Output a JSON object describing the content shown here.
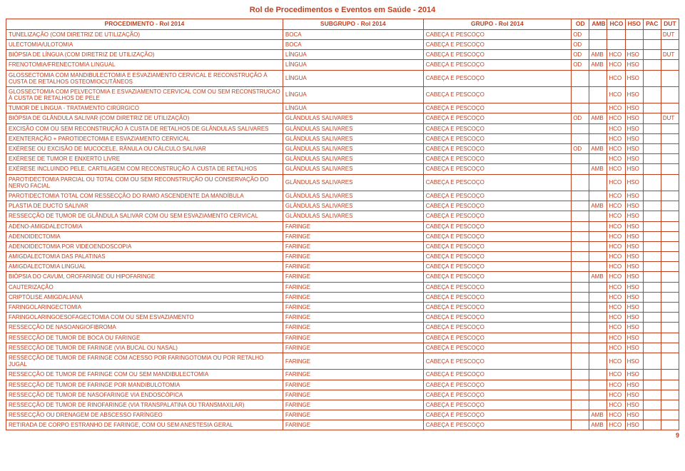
{
  "doc_title": "Rol de Procedimentos e Eventos em Saúde - 2014",
  "page_number": "9",
  "headers": {
    "proc": "PROCEDIMENTO - Rol 2014",
    "sub": "SUBGRUPO - Rol 2014",
    "grp": "GRUPO - Rol 2014",
    "od": "OD",
    "amb": "AMB",
    "hco": "HCO",
    "hso": "HSO",
    "pac": "PAC",
    "dut": "DUT"
  },
  "rows": [
    {
      "proc": "TUNELIZAÇÃO (COM DIRETRIZ DE UTILIZAÇÃO)",
      "sub": "BOCA",
      "grp": "CABEÇA E PESCOÇO",
      "od": "OD",
      "amb": "",
      "hco": "",
      "hso": "",
      "pac": "",
      "dut": "DUT"
    },
    {
      "proc": "ULECTOMIA/ULOTOMIA",
      "sub": "BOCA",
      "grp": "CABEÇA E PESCOÇO",
      "od": "OD",
      "amb": "",
      "hco": "",
      "hso": "",
      "pac": "",
      "dut": ""
    },
    {
      "proc": "BIÓPSIA DE LÍNGUA (COM DIRETRIZ DE UTILIZAÇÃO)",
      "sub": "LÍNGUA",
      "grp": "CABEÇA E PESCOÇO",
      "od": "OD",
      "amb": "AMB",
      "hco": "HCO",
      "hso": "HSO",
      "pac": "",
      "dut": "DUT"
    },
    {
      "proc": "FRENOTOMIA/FRENECTOMIA LINGUAL",
      "sub": "LÍNGUA",
      "grp": "CABEÇA E PESCOÇO",
      "od": "OD",
      "amb": "AMB",
      "hco": "HCO",
      "hso": "HSO",
      "pac": "",
      "dut": ""
    },
    {
      "proc": "GLOSSECTOMIA COM MANDIBULECTOMIA E ESVAZIAMENTO CERVICAL E RECONSTRUÇÃO À CUSTA DE RETALHOS OSTEOMIOCUTÂNEOS",
      "sub": "LÍNGUA",
      "grp": "CABEÇA E PESCOÇO",
      "od": "",
      "amb": "",
      "hco": "HCO",
      "hso": "HSO",
      "pac": "",
      "dut": ""
    },
    {
      "proc": "GLOSSECTOMIA COM PELVECTOMIA E ESVAZIAMENTO CERVICAL COM OU SEM RECONSTRUCAO À CUSTA DE RETALHOS DE PELE",
      "sub": "LÍNGUA",
      "grp": "CABEÇA E PESCOÇO",
      "od": "",
      "amb": "",
      "hco": "HCO",
      "hso": "HSO",
      "pac": "",
      "dut": ""
    },
    {
      "proc": "TUMOR DE LÍNGUA - TRATAMENTO CIRÚRGICO",
      "sub": "LÍNGUA",
      "grp": "CABEÇA E PESCOÇO",
      "od": "",
      "amb": "",
      "hco": "HCO",
      "hso": "HSO",
      "pac": "",
      "dut": ""
    },
    {
      "proc": "BIÓPSIA DE GLÂNDULA SALIVAR (COM DIRETRIZ DE UTILIZAÇÃO)",
      "sub": "GLÂNDULAS SALIVARES",
      "grp": "CABEÇA E PESCOÇO",
      "od": "OD",
      "amb": "AMB",
      "hco": "HCO",
      "hso": "HSO",
      "pac": "",
      "dut": "DUT"
    },
    {
      "proc": "EXCISÃO COM OU SEM RECONSTRUÇÃO À CUSTA DE RETALHOS DE GLÂNDULAS SALIVARES",
      "sub": "GLÂNDULAS SALIVARES",
      "grp": "CABEÇA E PESCOÇO",
      "od": "",
      "amb": "",
      "hco": "HCO",
      "hso": "HSO",
      "pac": "",
      "dut": ""
    },
    {
      "proc": "EXENTERAÇÃO + PAROTIDECTOMIA E ESVAZIAMENTO CERVICAL",
      "sub": "GLÂNDULAS SALIVARES",
      "grp": "CABEÇA E PESCOÇO",
      "od": "",
      "amb": "",
      "hco": "HCO",
      "hso": "HSO",
      "pac": "",
      "dut": ""
    },
    {
      "proc": "EXÉRESE OU EXCISÃO DE MUCOCELE, RÂNULA OU CÁLCULO SALIVAR",
      "sub": "GLÂNDULAS SALIVARES",
      "grp": "CABEÇA E PESCOÇO",
      "od": "OD",
      "amb": "AMB",
      "hco": "HCO",
      "hso": "HSO",
      "pac": "",
      "dut": ""
    },
    {
      "proc": "EXÉRESE DE TUMOR E ENXERTO LIVRE",
      "sub": "GLÂNDULAS SALIVARES",
      "grp": "CABEÇA E PESCOÇO",
      "od": "",
      "amb": "",
      "hco": "HCO",
      "hso": "HSO",
      "pac": "",
      "dut": ""
    },
    {
      "proc": "EXÉRESE INCLUINDO PELE, CARTILAGEM COM RECONSTRUÇÃO À CUSTA DE RETALHOS",
      "sub": "GLÂNDULAS SALIVARES",
      "grp": "CABEÇA E PESCOÇO",
      "od": "",
      "amb": "AMB",
      "hco": "HCO",
      "hso": "HSO",
      "pac": "",
      "dut": ""
    },
    {
      "proc": "PAROTIDECTOMIA PARCIAL OU TOTAL COM OU SEM RECONSTRUÇÃO OU CONSERVAÇÃO DO NERVO FACIAL",
      "sub": "GLÂNDULAS SALIVARES",
      "grp": "CABEÇA E PESCOÇO",
      "od": "",
      "amb": "",
      "hco": "HCO",
      "hso": "HSO",
      "pac": "",
      "dut": ""
    },
    {
      "proc": "PAROTIDECTOMIA TOTAL COM RESSECÇÃO DO RAMO ASCENDENTE DA MANDÍBULA",
      "sub": "GLÂNDULAS SALIVARES",
      "grp": "CABEÇA E PESCOÇO",
      "od": "",
      "amb": "",
      "hco": "HCO",
      "hso": "HSO",
      "pac": "",
      "dut": ""
    },
    {
      "proc": "PLASTIA DE DUCTO SALIVAR",
      "sub": "GLÂNDULAS SALIVARES",
      "grp": "CABEÇA E PESCOÇO",
      "od": "",
      "amb": "AMB",
      "hco": "HCO",
      "hso": "HSO",
      "pac": "",
      "dut": ""
    },
    {
      "proc": "RESSECÇÃO DE TUMOR DE GLÂNDULA SALIVAR COM OU SEM ESVAZIAMENTO CERVICAL",
      "sub": "GLÂNDULAS SALIVARES",
      "grp": "CABEÇA E PESCOÇO",
      "od": "",
      "amb": "",
      "hco": "HCO",
      "hso": "HSO",
      "pac": "",
      "dut": ""
    },
    {
      "proc": "ADENO-AMIGDALECTOMIA",
      "sub": "FARINGE",
      "grp": "CABEÇA E PESCOÇO",
      "od": "",
      "amb": "",
      "hco": "HCO",
      "hso": "HSO",
      "pac": "",
      "dut": ""
    },
    {
      "proc": "ADENOIDECTOMIA",
      "sub": "FARINGE",
      "grp": "CABEÇA E PESCOÇO",
      "od": "",
      "amb": "",
      "hco": "HCO",
      "hso": "HSO",
      "pac": "",
      "dut": ""
    },
    {
      "proc": "ADENOIDECTOMIA POR VIDEOENDOSCOPIA",
      "sub": "FARINGE",
      "grp": "CABEÇA E PESCOÇO",
      "od": "",
      "amb": "",
      "hco": "HCO",
      "hso": "HSO",
      "pac": "",
      "dut": ""
    },
    {
      "proc": "AMIGDALECTOMIA DAS PALATINAS",
      "sub": "FARINGE",
      "grp": "CABEÇA E PESCOÇO",
      "od": "",
      "amb": "",
      "hco": "HCO",
      "hso": "HSO",
      "pac": "",
      "dut": ""
    },
    {
      "proc": "AMIGDALECTOMIA LINGUAL",
      "sub": "FARINGE",
      "grp": "CABEÇA E PESCOÇO",
      "od": "",
      "amb": "",
      "hco": "HCO",
      "hso": "HSO",
      "pac": "",
      "dut": ""
    },
    {
      "proc": "BIÓPSIA DO CAVUM, OROFARINGE OU HIPOFARINGE",
      "sub": "FARINGE",
      "grp": "CABEÇA E PESCOÇO",
      "od": "",
      "amb": "AMB",
      "hco": "HCO",
      "hso": "HSO",
      "pac": "",
      "dut": ""
    },
    {
      "proc": "CAUTERIZAÇÃO",
      "sub": "FARINGE",
      "grp": "CABEÇA E PESCOÇO",
      "od": "",
      "amb": "",
      "hco": "HCO",
      "hso": "HSO",
      "pac": "",
      "dut": ""
    },
    {
      "proc": "CRIPTÓLISE AMIGDALIANA",
      "sub": "FARINGE",
      "grp": "CABEÇA E PESCOÇO",
      "od": "",
      "amb": "",
      "hco": "HCO",
      "hso": "HSO",
      "pac": "",
      "dut": ""
    },
    {
      "proc": "FARINGOLARINGECTOMIA",
      "sub": "FARINGE",
      "grp": "CABEÇA E PESCOÇO",
      "od": "",
      "amb": "",
      "hco": "HCO",
      "hso": "HSO",
      "pac": "",
      "dut": ""
    },
    {
      "proc": "FARINGOLARINGOESOFAGECTOMIA COM OU SEM ESVAZIAMENTO",
      "sub": "FARINGE",
      "grp": "CABEÇA E PESCOÇO",
      "od": "",
      "amb": "",
      "hco": "HCO",
      "hso": "HSO",
      "pac": "",
      "dut": ""
    },
    {
      "proc": "RESSECÇÃO DE NASOANGIOFIBROMA",
      "sub": "FARINGE",
      "grp": "CABEÇA E PESCOÇO",
      "od": "",
      "amb": "",
      "hco": "HCO",
      "hso": "HSO",
      "pac": "",
      "dut": ""
    },
    {
      "proc": "RESSECÇÃO DE TUMOR DE BOCA OU FARINGE",
      "sub": "FARINGE",
      "grp": "CABEÇA E PESCOÇO",
      "od": "",
      "amb": "",
      "hco": "HCO",
      "hso": "HSO",
      "pac": "",
      "dut": ""
    },
    {
      "proc": "RESSECÇÃO DE TUMOR DE FARINGE (VIA BUCAL OU NASAL)",
      "sub": "FARINGE",
      "grp": "CABEÇA E PESCOÇO",
      "od": "",
      "amb": "",
      "hco": "HCO",
      "hso": "HSO",
      "pac": "",
      "dut": ""
    },
    {
      "proc": "RESSECÇÃO DE TUMOR DE FARINGE COM ACESSO POR FARINGOTOMIA OU POR RETALHO JUGAL",
      "sub": "FARINGE",
      "grp": "CABEÇA E PESCOÇO",
      "od": "",
      "amb": "",
      "hco": "HCO",
      "hso": "HSO",
      "pac": "",
      "dut": ""
    },
    {
      "proc": "RESSECÇÃO DE TUMOR DE FARINGE COM OU SEM MANDIBULECTOMIA",
      "sub": "FARINGE",
      "grp": "CABEÇA E PESCOÇO",
      "od": "",
      "amb": "",
      "hco": "HCO",
      "hso": "HSO",
      "pac": "",
      "dut": ""
    },
    {
      "proc": "RESSECÇÃO DE TUMOR DE FARINGE POR MANDIBULOTOMIA",
      "sub": "FARINGE",
      "grp": "CABEÇA E PESCOÇO",
      "od": "",
      "amb": "",
      "hco": "HCO",
      "hso": "HSO",
      "pac": "",
      "dut": ""
    },
    {
      "proc": "RESSECÇÃO DE TUMOR DE NASOFARINGE VIA ENDOSCÓPICA",
      "sub": "FARINGE",
      "grp": "CABEÇA E PESCOÇO",
      "od": "",
      "amb": "",
      "hco": "HCO",
      "hso": "HSO",
      "pac": "",
      "dut": ""
    },
    {
      "proc": "RESSECÇÃO DE TUMOR DE RINOFARINGE (VIA TRANSPALATINA OU TRANSMAXILAR)",
      "sub": "FARINGE",
      "grp": "CABEÇA E PESCOÇO",
      "od": "",
      "amb": "",
      "hco": "HCO",
      "hso": "HSO",
      "pac": "",
      "dut": ""
    },
    {
      "proc": "RESSECÇÃO OU DRENAGEM DE ABSCESSO FARÍNGEO",
      "sub": "FARINGE",
      "grp": "CABEÇA E PESCOÇO",
      "od": "",
      "amb": "AMB",
      "hco": "HCO",
      "hso": "HSO",
      "pac": "",
      "dut": ""
    },
    {
      "proc": "RETIRADA DE CORPO ESTRANHO DE FARINGE, COM OU SEM ANESTESIA GERAL",
      "sub": "FARINGE",
      "grp": "CABEÇA E PESCOÇO",
      "od": "",
      "amb": "AMB",
      "hco": "HCO",
      "hso": "HSO",
      "pac": "",
      "dut": ""
    }
  ]
}
